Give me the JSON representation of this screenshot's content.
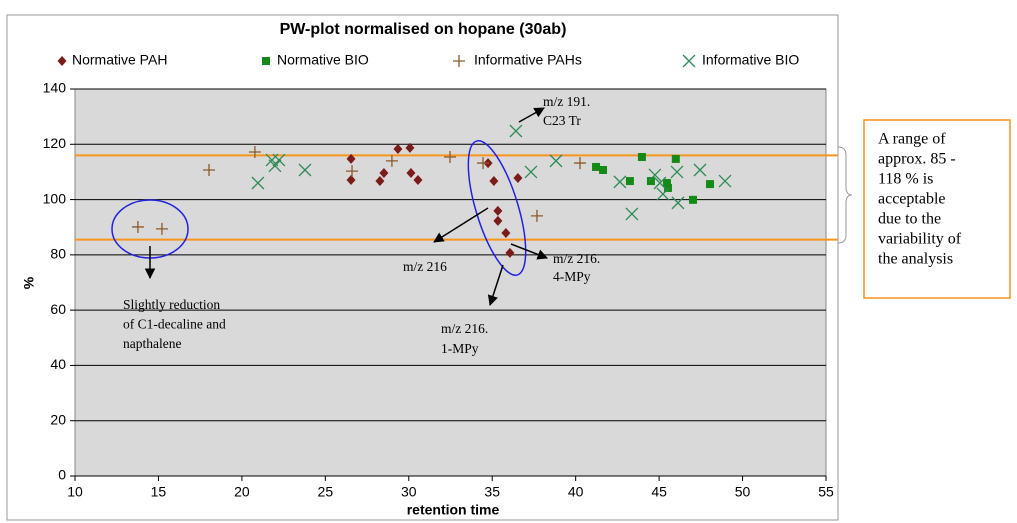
{
  "chart_data": {
    "type": "scatter",
    "title": "PW-plot normalised on hopane (30ab)",
    "x_label": "retention time",
    "y_label": "%",
    "xlim": [
      10,
      55
    ],
    "xticks": [
      10,
      15,
      20,
      25,
      30,
      35,
      40,
      45,
      50,
      55
    ],
    "ylim": [
      0,
      140
    ],
    "yticks": [
      0,
      20,
      40,
      60,
      80,
      100,
      120,
      140
    ],
    "grid": true,
    "legend": "top",
    "reference_lines": {
      "color": "#f7941d",
      "values": [
        116,
        85.5
      ]
    },
    "series": [
      {
        "name": "Normative PAH",
        "color": "#7b1c1c",
        "marker": "diamond",
        "x": [
          26.54,
          26.54,
          28.27,
          28.51,
          29.35,
          30.07,
          30.13,
          30.55,
          34.75,
          35.1,
          35.34,
          35.34,
          35.82,
          36.06,
          36.54
        ],
        "values": [
          114.7,
          107.1,
          106.7,
          109.6,
          118.3,
          118.7,
          109.6,
          107.1,
          113.2,
          106.7,
          95.9,
          92.3,
          87.9,
          80.7,
          107.8
        ]
      },
      {
        "name": "Normative BIO",
        "color": "#168a16",
        "marker": "square",
        "x": [
          41.22,
          41.64,
          43.25,
          43.97,
          44.51,
          45.47,
          45.53,
          46.0,
          47.03,
          48.05
        ],
        "values": [
          111.8,
          110.7,
          106.7,
          115.4,
          106.7,
          106,
          104.2,
          114.7,
          99.9,
          105.6
        ]
      },
      {
        "name": "Informative PAHs",
        "color": "#8b5a2b",
        "marker": "plus",
        "x": [
          13.77,
          15.21,
          18.03,
          20.78,
          26.6,
          28.99,
          32.47,
          34.45,
          37.68,
          40.26
        ],
        "values": [
          90.1,
          89.4,
          110.7,
          117.2,
          110.3,
          114,
          115.4,
          113.2,
          94.1,
          113.2
        ]
      },
      {
        "name": "Informative BIO",
        "color": "#2e8b57",
        "marker": "cross",
        "x": [
          20.96,
          21.8,
          21.98,
          22.22,
          23.78,
          36.42,
          37.32,
          38.82,
          42.65,
          43.37,
          44.75,
          45.05,
          45.23,
          46.07,
          46.13,
          47.45,
          48.95
        ],
        "values": [
          106,
          114.3,
          112.2,
          114.3,
          110.7,
          124.8,
          110,
          114,
          106.4,
          94.8,
          108.9,
          106,
          102,
          110,
          98.8,
          110.7,
          106.7
        ]
      }
    ],
    "annotations": [
      {
        "lines": [
          "m/z 191.",
          "C23 Tr"
        ]
      },
      {
        "lines": [
          "m/z 216"
        ]
      },
      {
        "lines": [
          "m/z 216.",
          "4-MPy"
        ]
      },
      {
        "lines": [
          "m/z 216.",
          "1-MPy"
        ]
      },
      {
        "lines": [
          "Slightly reduction",
          "of C1-decaline and",
          "napthalene"
        ]
      },
      {
        "lines": [
          "A range of",
          "approx. 85 -",
          "118 % is",
          "acceptable",
          "due to the",
          "variability of",
          "the analysis"
        ]
      }
    ]
  }
}
